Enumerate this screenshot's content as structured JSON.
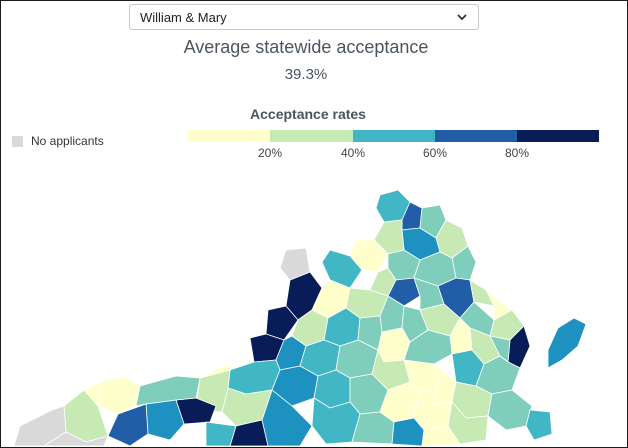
{
  "selector": {
    "selected": "William & Mary"
  },
  "stat": {
    "title": "Average statewide acceptance",
    "value": "39.3%"
  },
  "legend": {
    "title": "Acceptance rates",
    "no_applicants_label": "No applicants",
    "no_applicants_color": "#d9d9d9",
    "bins": [
      {
        "color": "#ffffcc"
      },
      {
        "color": "#c7e9b4"
      },
      {
        "color": "#41b6c4"
      },
      {
        "color": "#225ea8"
      },
      {
        "color": "#081d58"
      }
    ],
    "ticks": [
      "20%",
      "40%",
      "60%",
      "80%"
    ]
  },
  "map": {
    "region": "Virginia counties",
    "colors": [
      "#ffffcc",
      "#c7e9b4",
      "#7fcdbb",
      "#41b6c4",
      "#1d91c0",
      "#225ea8",
      "#081d58",
      "#d9d9d9"
    ]
  }
}
